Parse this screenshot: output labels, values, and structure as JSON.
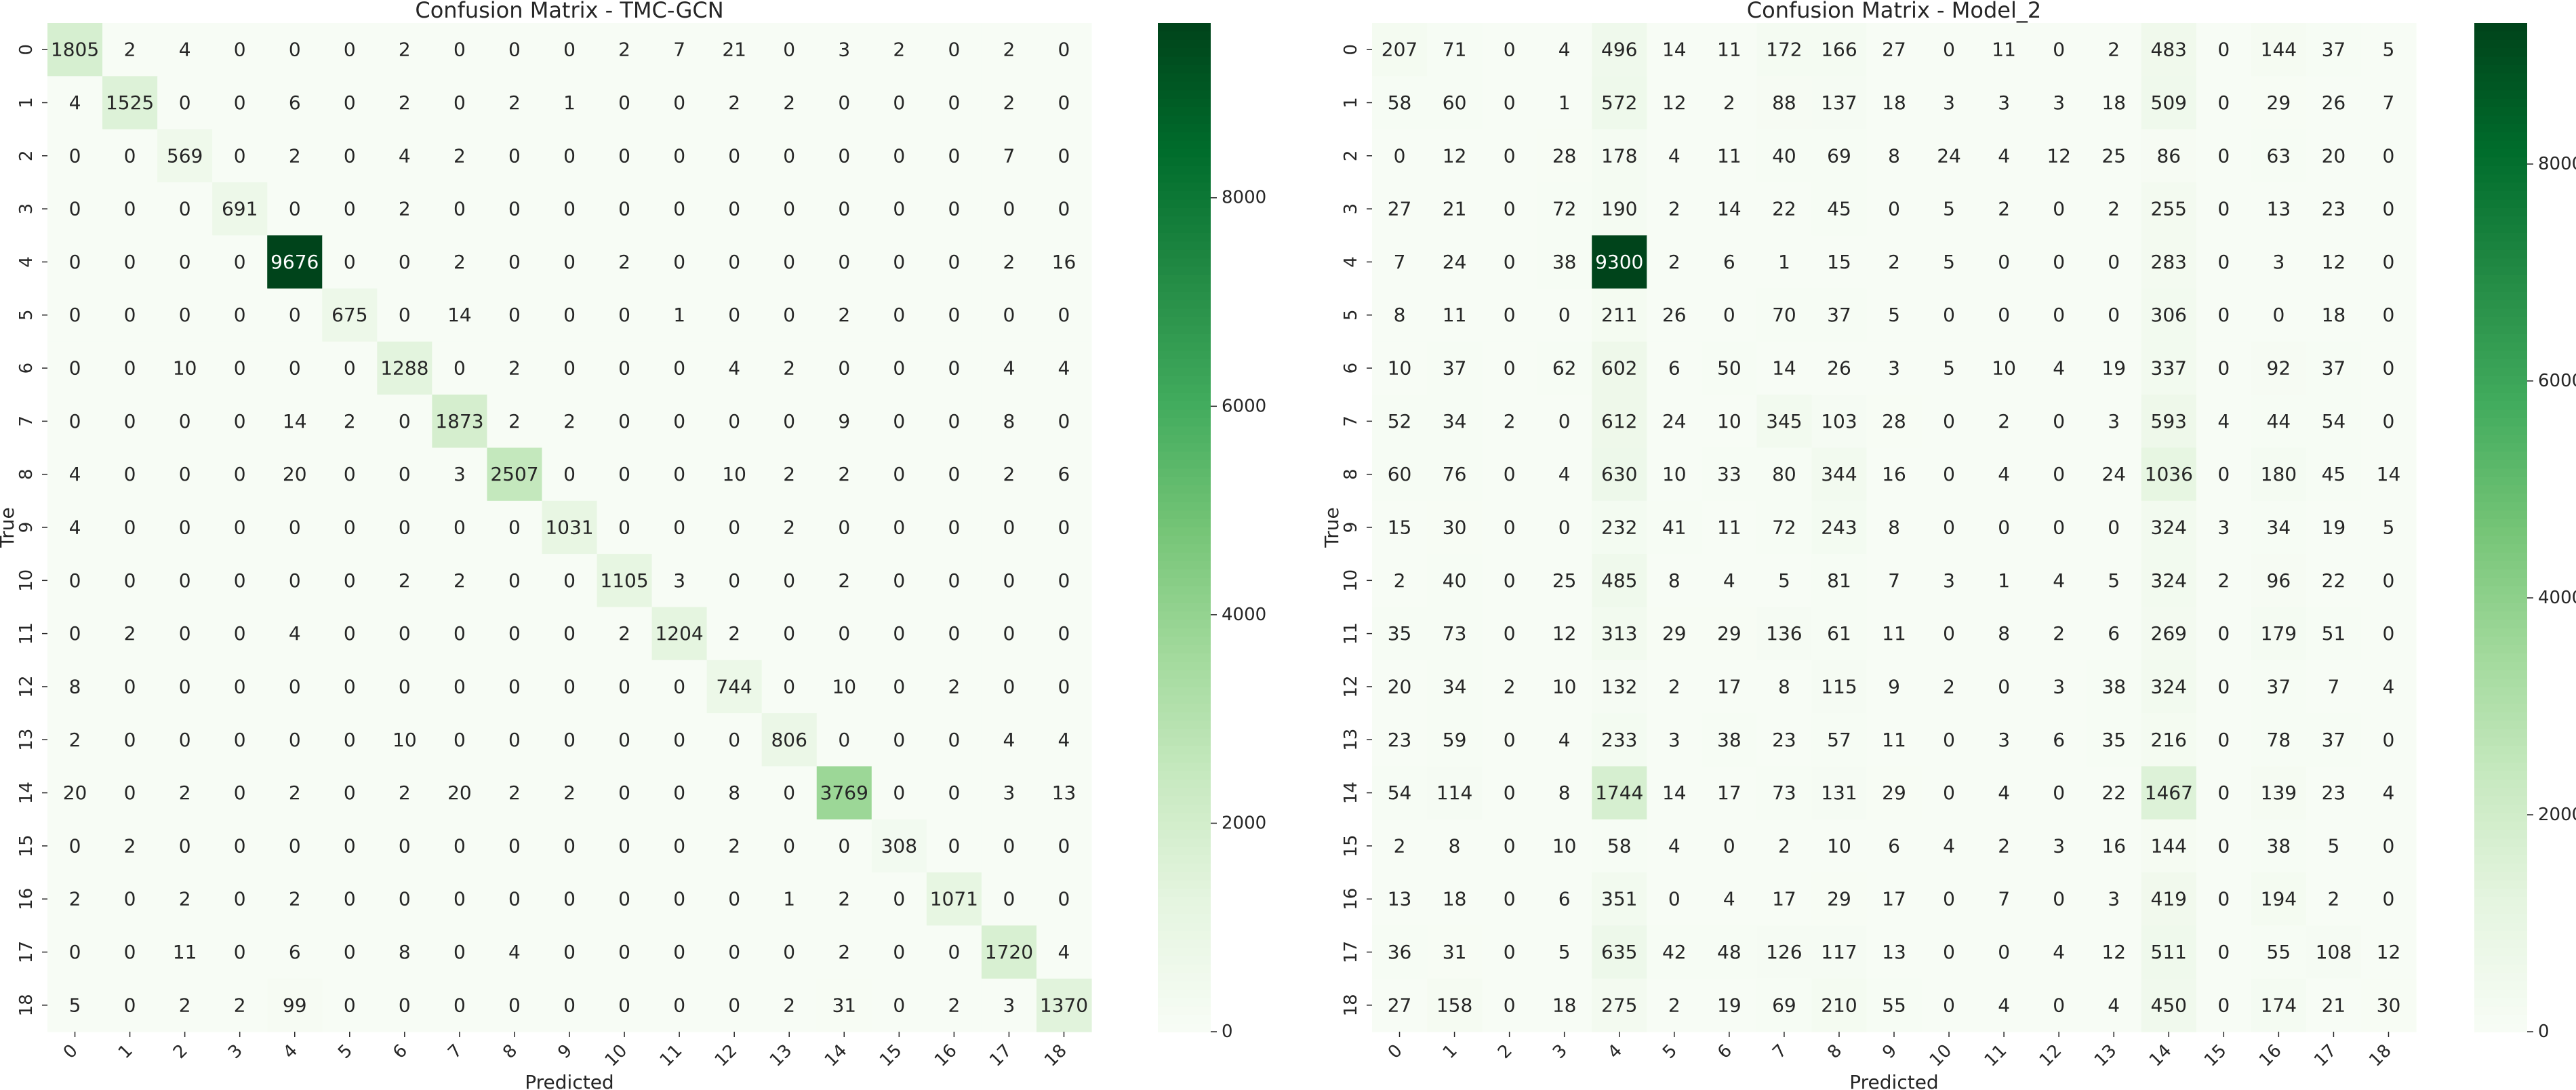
{
  "chart_data": [
    {
      "type": "heatmap",
      "title": "Confusion Matrix - TMC-GCN",
      "xlabel": "Predicted",
      "ylabel": "True",
      "x_categories": [
        "0",
        "1",
        "2",
        "3",
        "4",
        "5",
        "6",
        "7",
        "8",
        "9",
        "10",
        "11",
        "12",
        "13",
        "14",
        "15",
        "16",
        "17",
        "18"
      ],
      "y_categories": [
        "0",
        "1",
        "2",
        "3",
        "4",
        "5",
        "6",
        "7",
        "8",
        "9",
        "10",
        "11",
        "12",
        "13",
        "14",
        "15",
        "16",
        "17",
        "18"
      ],
      "color_scale": {
        "min": 0,
        "max": 9676,
        "low_color": "#f7fcf5",
        "high_color": "#00441b"
      },
      "colorbar_ticks": [
        "0",
        "2000",
        "4000",
        "6000",
        "8000"
      ],
      "colorbar_tick_values": [
        0,
        2000,
        4000,
        6000,
        8000
      ],
      "matrix": [
        [
          1805,
          2,
          4,
          0,
          0,
          0,
          2,
          0,
          0,
          0,
          2,
          7,
          21,
          0,
          3,
          2,
          0,
          2,
          0
        ],
        [
          4,
          1525,
          0,
          0,
          6,
          0,
          2,
          0,
          2,
          1,
          0,
          0,
          2,
          2,
          0,
          0,
          0,
          2,
          0
        ],
        [
          0,
          0,
          569,
          0,
          2,
          0,
          4,
          2,
          0,
          0,
          0,
          0,
          0,
          0,
          0,
          0,
          0,
          7,
          0
        ],
        [
          0,
          0,
          0,
          691,
          0,
          0,
          2,
          0,
          0,
          0,
          0,
          0,
          0,
          0,
          0,
          0,
          0,
          0,
          0
        ],
        [
          0,
          0,
          0,
          0,
          9676,
          0,
          0,
          2,
          0,
          0,
          2,
          0,
          0,
          0,
          0,
          0,
          0,
          2,
          16
        ],
        [
          0,
          0,
          0,
          0,
          0,
          675,
          0,
          14,
          0,
          0,
          0,
          1,
          0,
          0,
          2,
          0,
          0,
          0,
          0
        ],
        [
          0,
          0,
          10,
          0,
          0,
          0,
          1288,
          0,
          2,
          0,
          0,
          0,
          4,
          2,
          0,
          0,
          0,
          4,
          4
        ],
        [
          0,
          0,
          0,
          0,
          14,
          2,
          0,
          1873,
          2,
          2,
          0,
          0,
          0,
          0,
          9,
          0,
          0,
          8,
          0
        ],
        [
          4,
          0,
          0,
          0,
          20,
          0,
          0,
          3,
          2507,
          0,
          0,
          0,
          10,
          2,
          2,
          0,
          0,
          2,
          6
        ],
        [
          4,
          0,
          0,
          0,
          0,
          0,
          0,
          0,
          0,
          1031,
          0,
          0,
          0,
          2,
          0,
          0,
          0,
          0,
          0
        ],
        [
          0,
          0,
          0,
          0,
          0,
          0,
          2,
          2,
          0,
          0,
          1105,
          3,
          0,
          0,
          2,
          0,
          0,
          0,
          0
        ],
        [
          0,
          2,
          0,
          0,
          4,
          0,
          0,
          0,
          0,
          0,
          2,
          1204,
          2,
          0,
          0,
          0,
          0,
          0,
          0
        ],
        [
          8,
          0,
          0,
          0,
          0,
          0,
          0,
          0,
          0,
          0,
          0,
          0,
          744,
          0,
          10,
          0,
          2,
          0,
          0
        ],
        [
          2,
          0,
          0,
          0,
          0,
          0,
          10,
          0,
          0,
          0,
          0,
          0,
          0,
          806,
          0,
          0,
          0,
          4,
          4
        ],
        [
          20,
          0,
          2,
          0,
          2,
          0,
          2,
          20,
          2,
          2,
          0,
          0,
          8,
          0,
          3769,
          0,
          0,
          3,
          13
        ],
        [
          0,
          2,
          0,
          0,
          0,
          0,
          0,
          0,
          0,
          0,
          0,
          0,
          2,
          0,
          0,
          308,
          0,
          0,
          0
        ],
        [
          2,
          0,
          2,
          0,
          2,
          0,
          0,
          0,
          0,
          0,
          0,
          0,
          0,
          1,
          2,
          0,
          1071,
          0,
          0
        ],
        [
          0,
          0,
          11,
          0,
          6,
          0,
          8,
          0,
          4,
          0,
          0,
          0,
          0,
          0,
          2,
          0,
          0,
          1720,
          4
        ],
        [
          5,
          0,
          2,
          2,
          99,
          0,
          0,
          0,
          0,
          0,
          0,
          0,
          0,
          2,
          31,
          0,
          2,
          3,
          1370
        ]
      ]
    },
    {
      "type": "heatmap",
      "title": "Confusion Matrix - Model_2",
      "xlabel": "Predicted",
      "ylabel": "True",
      "x_categories": [
        "0",
        "1",
        "2",
        "3",
        "4",
        "5",
        "6",
        "7",
        "8",
        "9",
        "10",
        "11",
        "12",
        "13",
        "14",
        "15",
        "16",
        "17",
        "18"
      ],
      "y_categories": [
        "0",
        "1",
        "2",
        "3",
        "4",
        "5",
        "6",
        "7",
        "8",
        "9",
        "10",
        "11",
        "12",
        "13",
        "14",
        "15",
        "16",
        "17",
        "18"
      ],
      "color_scale": {
        "min": 0,
        "max": 9300,
        "low_color": "#f7fcf5",
        "high_color": "#00441b"
      },
      "colorbar_ticks": [
        "0",
        "2000",
        "4000",
        "6000",
        "8000"
      ],
      "colorbar_tick_values": [
        0,
        2000,
        4000,
        6000,
        8000
      ],
      "matrix": [
        [
          207,
          71,
          0,
          4,
          496,
          14,
          11,
          172,
          166,
          27,
          0,
          11,
          0,
          2,
          483,
          0,
          144,
          37,
          5
        ],
        [
          58,
          60,
          0,
          1,
          572,
          12,
          2,
          88,
          137,
          18,
          3,
          3,
          3,
          18,
          509,
          0,
          29,
          26,
          7
        ],
        [
          0,
          12,
          0,
          28,
          178,
          4,
          11,
          40,
          69,
          8,
          24,
          4,
          12,
          25,
          86,
          0,
          63,
          20,
          0
        ],
        [
          27,
          21,
          0,
          72,
          190,
          2,
          14,
          22,
          45,
          0,
          5,
          2,
          0,
          2,
          255,
          0,
          13,
          23,
          0
        ],
        [
          7,
          24,
          0,
          38,
          9300,
          2,
          6,
          1,
          15,
          2,
          5,
          0,
          0,
          0,
          283,
          0,
          3,
          12,
          0
        ],
        [
          8,
          11,
          0,
          0,
          211,
          26,
          0,
          70,
          37,
          5,
          0,
          0,
          0,
          0,
          306,
          0,
          0,
          18,
          0
        ],
        [
          10,
          37,
          0,
          62,
          602,
          6,
          50,
          14,
          26,
          3,
          5,
          10,
          4,
          19,
          337,
          0,
          92,
          37,
          0
        ],
        [
          52,
          34,
          2,
          0,
          612,
          24,
          10,
          345,
          103,
          28,
          0,
          2,
          0,
          3,
          593,
          4,
          44,
          54,
          0
        ],
        [
          60,
          76,
          0,
          4,
          630,
          10,
          33,
          80,
          344,
          16,
          0,
          4,
          0,
          24,
          1036,
          0,
          180,
          45,
          14
        ],
        [
          15,
          30,
          0,
          0,
          232,
          41,
          11,
          72,
          243,
          8,
          0,
          0,
          0,
          0,
          324,
          3,
          34,
          19,
          5
        ],
        [
          2,
          40,
          0,
          25,
          485,
          8,
          4,
          5,
          81,
          7,
          3,
          1,
          4,
          5,
          324,
          2,
          96,
          22,
          0
        ],
        [
          35,
          73,
          0,
          12,
          313,
          29,
          29,
          136,
          61,
          11,
          0,
          8,
          2,
          6,
          269,
          0,
          179,
          51,
          0
        ],
        [
          20,
          34,
          2,
          10,
          132,
          2,
          17,
          8,
          115,
          9,
          2,
          0,
          3,
          38,
          324,
          0,
          37,
          7,
          4
        ],
        [
          23,
          59,
          0,
          4,
          233,
          3,
          38,
          23,
          57,
          11,
          0,
          3,
          6,
          35,
          216,
          0,
          78,
          37,
          0
        ],
        [
          54,
          114,
          0,
          8,
          1744,
          14,
          17,
          73,
          131,
          29,
          0,
          4,
          0,
          22,
          1467,
          0,
          139,
          23,
          4
        ],
        [
          2,
          8,
          0,
          10,
          58,
          4,
          0,
          2,
          10,
          6,
          4,
          2,
          3,
          16,
          144,
          0,
          38,
          5,
          0
        ],
        [
          13,
          18,
          0,
          6,
          351,
          0,
          4,
          17,
          29,
          17,
          0,
          7,
          0,
          3,
          419,
          0,
          194,
          2,
          0
        ],
        [
          36,
          31,
          0,
          5,
          635,
          42,
          48,
          126,
          117,
          13,
          0,
          0,
          4,
          12,
          511,
          0,
          55,
          108,
          12
        ],
        [
          27,
          158,
          0,
          18,
          275,
          2,
          19,
          69,
          210,
          55,
          0,
          4,
          0,
          4,
          450,
          0,
          174,
          21,
          30
        ]
      ]
    }
  ]
}
